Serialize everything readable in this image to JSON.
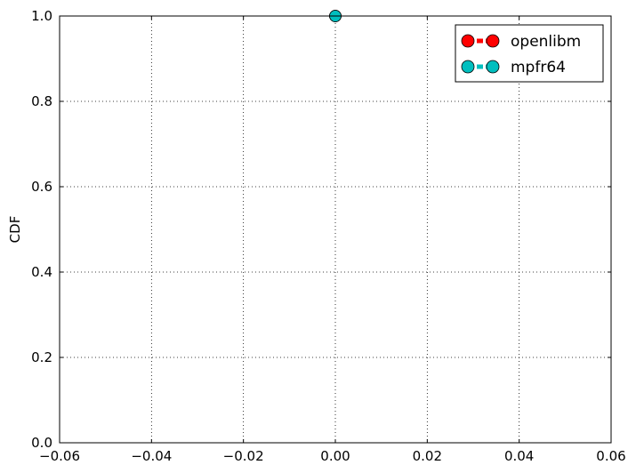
{
  "chart_data": {
    "type": "line",
    "title": "",
    "xlabel": "",
    "ylabel": "CDF",
    "xlim": [
      -0.06,
      0.06
    ],
    "ylim": [
      0.0,
      1.0
    ],
    "x_ticks": [
      -0.06,
      -0.04,
      -0.02,
      0.0,
      0.02,
      0.04,
      0.06
    ],
    "x_tick_labels": [
      "−0.06",
      "−0.04",
      "−0.02",
      "0.00",
      "0.02",
      "0.04",
      "0.06"
    ],
    "y_ticks": [
      0.0,
      0.2,
      0.4,
      0.6,
      0.8,
      1.0
    ],
    "y_tick_labels": [
      "0.0",
      "0.2",
      "0.4",
      "0.6",
      "0.8",
      "1.0"
    ],
    "grid": true,
    "grid_style": "dotted",
    "legend_position": "top-right",
    "series": [
      {
        "name": "openlibm",
        "color": "#ff0000",
        "marker": "circle",
        "linestyle": "dashed",
        "points": [
          {
            "x": 0.0,
            "y": 1.0
          }
        ]
      },
      {
        "name": "mpfr64",
        "color": "#00bfbf",
        "marker": "circle",
        "linestyle": "dashed",
        "points": [
          {
            "x": 0.0,
            "y": 1.0
          }
        ]
      }
    ]
  }
}
